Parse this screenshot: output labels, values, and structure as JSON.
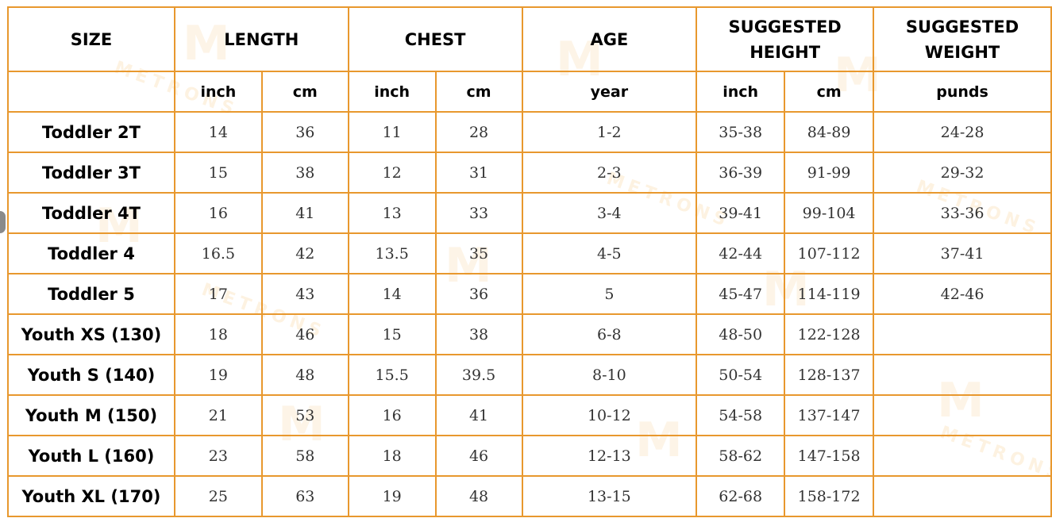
{
  "columns": {
    "size": "SIZE",
    "length": "LENGTH",
    "chest": "CHEST",
    "age": "AGE",
    "suggested_height": "SUGGESTED HEIGHT",
    "suggested_weight": "SUGGESTED WEIGHT"
  },
  "units": {
    "length_inch": "inch",
    "length_cm": "cm",
    "chest_inch": "inch",
    "chest_cm": "cm",
    "age": "year",
    "height_inch": "inch",
    "height_cm": "cm",
    "weight": "punds"
  },
  "rows": [
    {
      "size": "Toddler 2T",
      "length_inch": "14",
      "length_cm": "36",
      "chest_inch": "11",
      "chest_cm": "28",
      "age": "1-2",
      "height_inch": "35-38",
      "height_cm": "84-89",
      "weight": "24-28"
    },
    {
      "size": "Toddler 3T",
      "length_inch": "15",
      "length_cm": "38",
      "chest_inch": "12",
      "chest_cm": "31",
      "age": "2-3",
      "height_inch": "36-39",
      "height_cm": "91-99",
      "weight": "29-32"
    },
    {
      "size": "Toddler 4T",
      "length_inch": "16",
      "length_cm": "41",
      "chest_inch": "13",
      "chest_cm": "33",
      "age": "3-4",
      "height_inch": "39-41",
      "height_cm": "99-104",
      "weight": "33-36"
    },
    {
      "size": "Toddler 4",
      "length_inch": "16.5",
      "length_cm": "42",
      "chest_inch": "13.5",
      "chest_cm": "35",
      "age": "4-5",
      "height_inch": "42-44",
      "height_cm": "107-112",
      "weight": "37-41"
    },
    {
      "size": "Toddler 5",
      "length_inch": "17",
      "length_cm": "43",
      "chest_inch": "14",
      "chest_cm": "36",
      "age": "5",
      "height_inch": "45-47",
      "height_cm": "114-119",
      "weight": "42-46"
    },
    {
      "size": "Youth XS (130)",
      "length_inch": "18",
      "length_cm": "46",
      "chest_inch": "15",
      "chest_cm": "38",
      "age": "6-8",
      "height_inch": "48-50",
      "height_cm": "122-128",
      "weight": ""
    },
    {
      "size": "Youth S (140)",
      "length_inch": "19",
      "length_cm": "48",
      "chest_inch": "15.5",
      "chest_cm": "39.5",
      "age": "8-10",
      "height_inch": "50-54",
      "height_cm": "128-137",
      "weight": ""
    },
    {
      "size": "Youth M (150)",
      "length_inch": "21",
      "length_cm": "53",
      "chest_inch": "16",
      "chest_cm": "41",
      "age": "10-12",
      "height_inch": "54-58",
      "height_cm": "137-147",
      "weight": ""
    },
    {
      "size": "Youth L (160)",
      "length_inch": "23",
      "length_cm": "58",
      "chest_inch": "18",
      "chest_cm": "46",
      "age": "12-13",
      "height_inch": "58-62",
      "height_cm": "147-158",
      "weight": ""
    },
    {
      "size": "Youth XL (170)",
      "length_inch": "25",
      "length_cm": "63",
      "chest_inch": "19",
      "chest_cm": "48",
      "age": "13-15",
      "height_inch": "62-68",
      "height_cm": "158-172",
      "weight": ""
    }
  ],
  "watermark": "METRONS",
  "colors": {
    "border": "#e8982e",
    "watermark": "#f4c478"
  }
}
